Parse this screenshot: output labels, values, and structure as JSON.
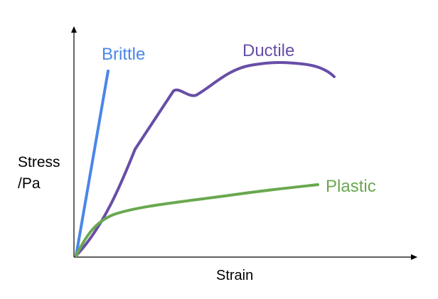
{
  "diagram": {
    "y_axis_label": [
      "Stress",
      "/Pa"
    ],
    "x_axis_label": "Strain",
    "curves": [
      {
        "name": "Brittle",
        "color": "#4a86e8"
      },
      {
        "name": "Ductile",
        "color": "#674ea7"
      },
      {
        "name": "Plastic",
        "color": "#6aa84f"
      }
    ],
    "axis_color": "#000000",
    "text_color": "#000000"
  }
}
